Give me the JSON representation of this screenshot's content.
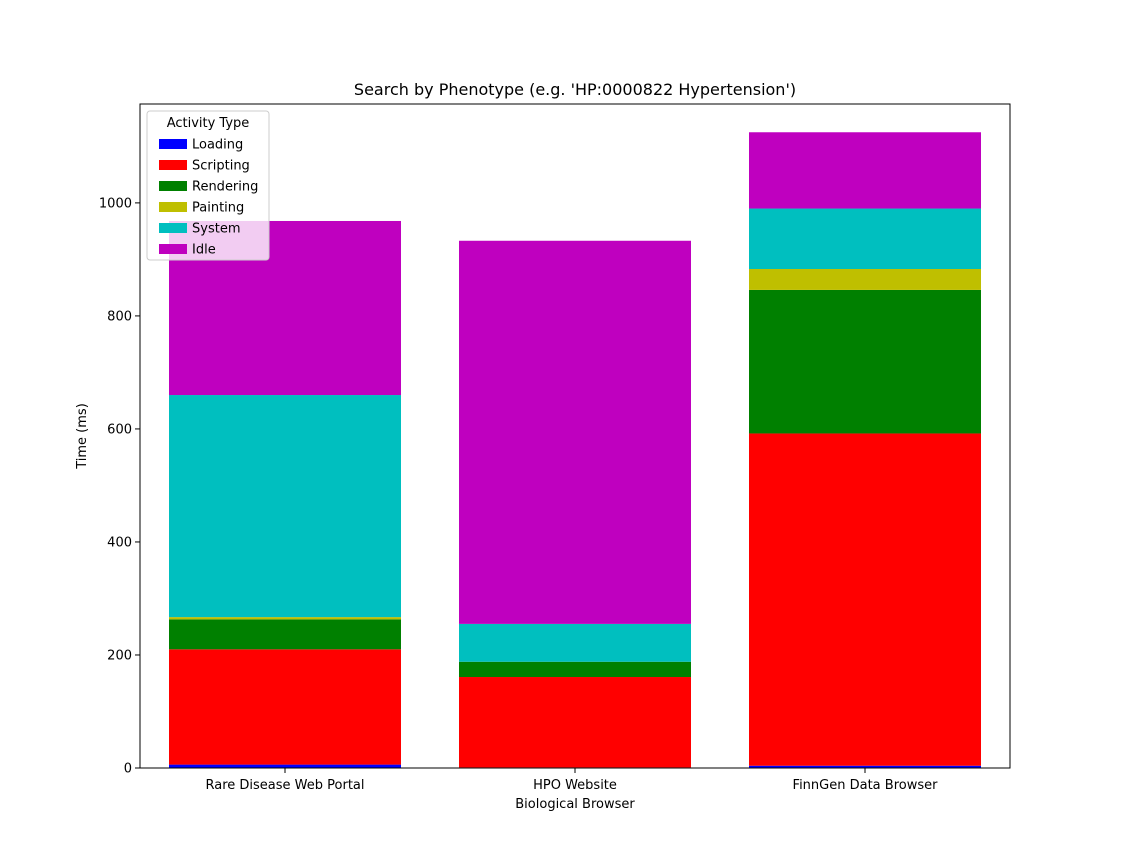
{
  "chart_data": {
    "type": "bar",
    "stacked": true,
    "title": "Search by Phenotype (e.g. 'HP:0000822 Hypertension')",
    "xlabel": "Biological Browser",
    "ylabel": "Time (ms)",
    "ylim": [
      0,
      1175
    ],
    "yticks": [
      0,
      200,
      400,
      600,
      800,
      1000
    ],
    "categories": [
      "Rare Disease Web Portal",
      "HPO Website",
      "FinnGen Data Browser"
    ],
    "legend": {
      "title": "Activity Type",
      "position": "top-left"
    },
    "grid": false,
    "series": [
      {
        "name": "Loading",
        "color": "#0000ff",
        "values": [
          6,
          1,
          4
        ]
      },
      {
        "name": "Scripting",
        "color": "#ff0000",
        "values": [
          204,
          160,
          588
        ]
      },
      {
        "name": "Rendering",
        "color": "#008000",
        "values": [
          53,
          27,
          254
        ]
      },
      {
        "name": "Painting",
        "color": "#bfbf00",
        "values": [
          4,
          0,
          37
        ]
      },
      {
        "name": "System",
        "color": "#00bfbf",
        "values": [
          393,
          67,
          107
        ]
      },
      {
        "name": "Idle",
        "color": "#bf00bf",
        "values": [
          308,
          678,
          135
        ]
      }
    ]
  }
}
